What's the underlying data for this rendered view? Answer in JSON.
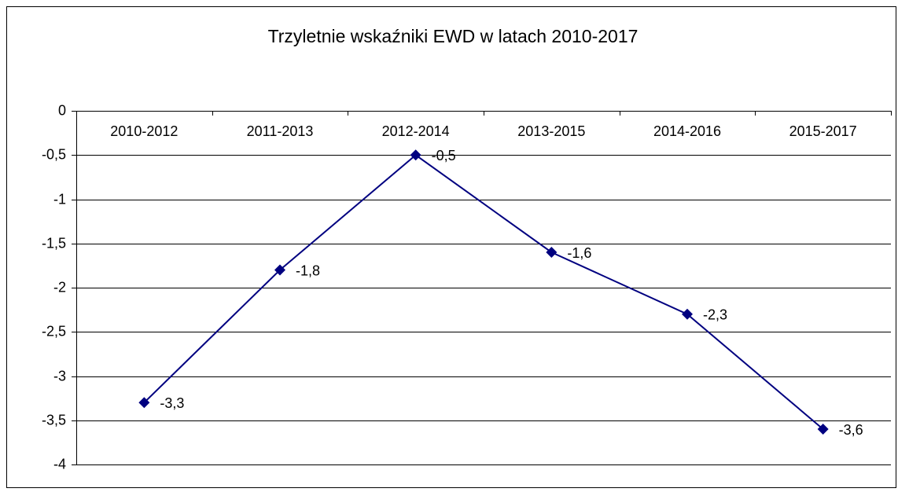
{
  "chart_data": {
    "type": "line",
    "title": "Trzyletnie wskaźniki EWD w latach 2010-2017",
    "categories": [
      "2010-2012",
      "2011-2013",
      "2012-2014",
      "2013-2015",
      "2014-2016",
      "2015-2017"
    ],
    "series": [
      {
        "name": "EWD",
        "color": "#000080",
        "values": [
          -3.3,
          -1.8,
          -0.5,
          -1.6,
          -2.3,
          -3.6
        ],
        "value_labels": [
          "-3,3",
          "-1,8",
          "-0,5",
          "-1,6",
          "-2,3",
          "-3,6"
        ]
      }
    ],
    "ylim": [
      -4,
      0
    ],
    "yticks": [
      0,
      {
        "value": -0.5,
        "label": "-0,5"
      },
      -1,
      {
        "value": -1.5,
        "label": "-1,5"
      },
      -2,
      {
        "value": -2.5,
        "label": "-2,5"
      },
      -3,
      {
        "value": -3.5,
        "label": "-3,5"
      },
      -4
    ],
    "grid": true
  }
}
